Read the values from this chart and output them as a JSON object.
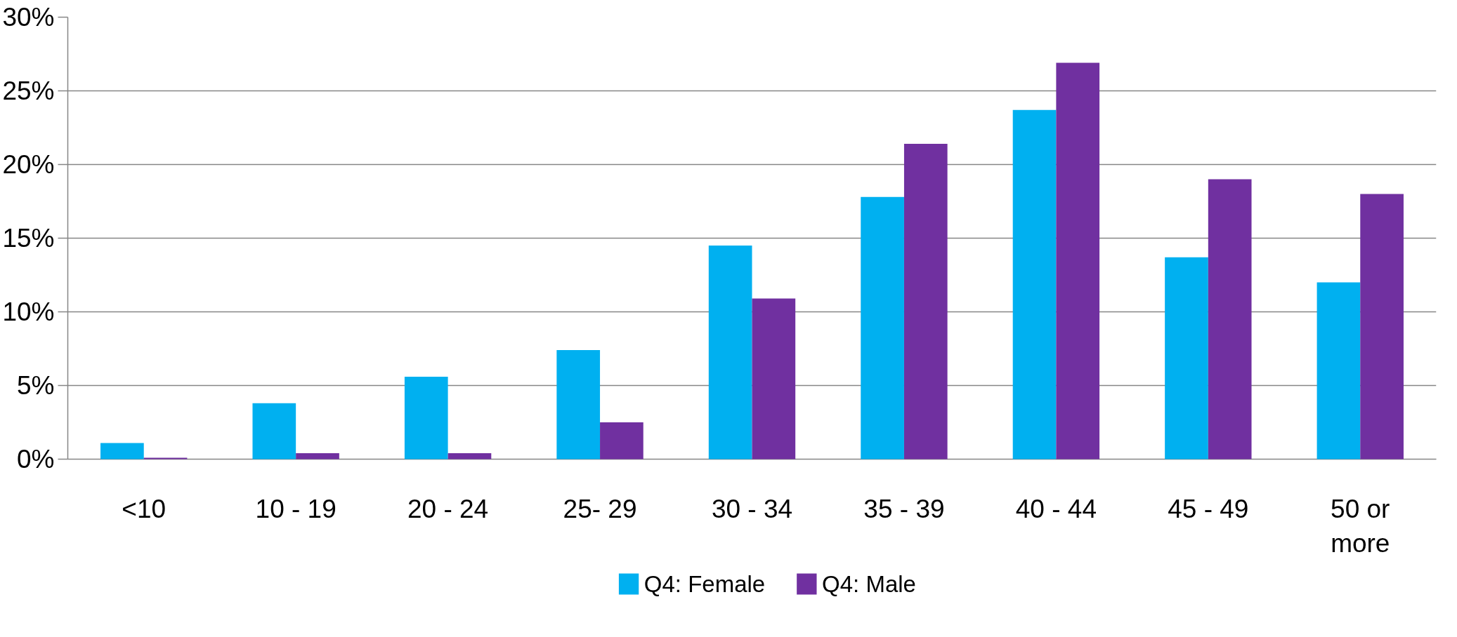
{
  "chart_data": {
    "type": "bar",
    "categories": [
      "<10",
      "10 - 19",
      "20 - 24",
      "25- 29",
      "30 - 34",
      "35 - 39",
      "40 - 44",
      "45 - 49",
      "50 or more"
    ],
    "series": [
      {
        "name": "Q4: Female",
        "color": "#00b0f0",
        "values": [
          1.1,
          3.8,
          5.6,
          7.4,
          14.5,
          17.8,
          23.7,
          13.7,
          12.0
        ]
      },
      {
        "name": "Q4: Male",
        "color": "#7030a0",
        "values": [
          0.1,
          0.4,
          0.4,
          2.5,
          10.9,
          21.4,
          26.9,
          19.0,
          18.0
        ]
      }
    ],
    "ylim": [
      0,
      30
    ],
    "yticks": [
      {
        "value": 0,
        "label": "0%"
      },
      {
        "value": 5,
        "label": "5%"
      },
      {
        "value": 10,
        "label": "10%"
      },
      {
        "value": 15,
        "label": "15%"
      },
      {
        "value": 20,
        "label": "20%"
      },
      {
        "value": 25,
        "label": "25%"
      },
      {
        "value": 30,
        "label": "30%"
      }
    ],
    "grid": "y",
    "legend": "bottom"
  }
}
